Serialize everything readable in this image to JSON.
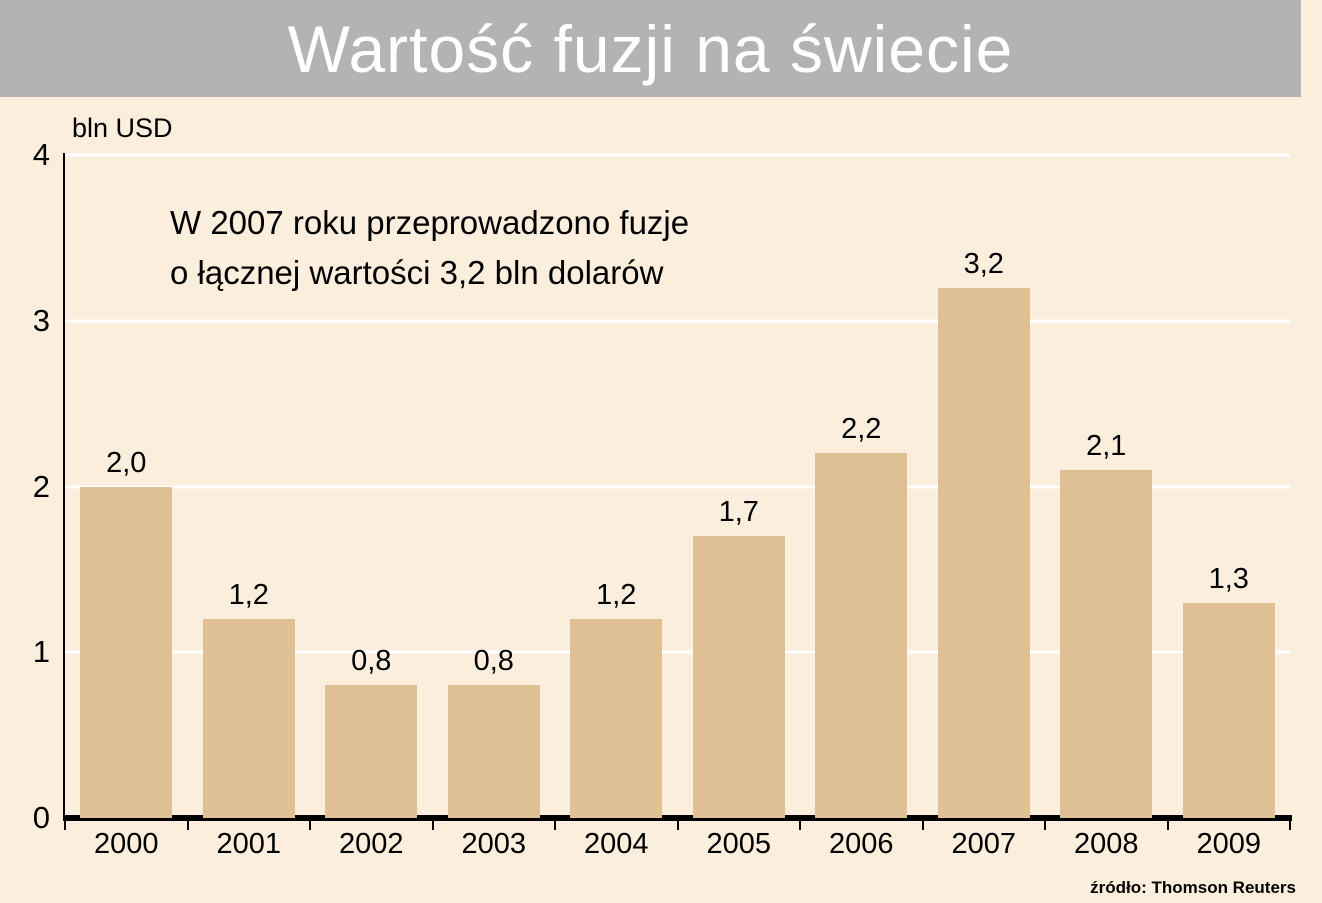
{
  "header": {
    "title": "Wartość fuzji na świecie"
  },
  "chart_data": {
    "type": "bar",
    "title": "Wartość fuzji na świecie",
    "ylabel": "bln USD",
    "xlabel": "",
    "categories": [
      "2000",
      "2001",
      "2002",
      "2003",
      "2004",
      "2005",
      "2006",
      "2007",
      "2008",
      "2009"
    ],
    "values": [
      2.0,
      1.2,
      0.8,
      0.8,
      1.2,
      1.7,
      2.2,
      3.2,
      2.1,
      1.3
    ],
    "value_labels": [
      "2,0",
      "1,2",
      "0,8",
      "0,8",
      "1,2",
      "1,7",
      "2,2",
      "3,2",
      "2,1",
      "1,3"
    ],
    "ylim": [
      0,
      4
    ],
    "yticks": [
      0,
      1,
      2,
      3,
      4
    ],
    "grid": true,
    "legend": "none",
    "annotation_lines": [
      "W 2007 roku przeprowadzono fuzje",
      "o łącznej wartości 3,2 bln dolarów"
    ],
    "source": "źródło: Thomson Reuters",
    "colors": {
      "bar": "#dfc094",
      "background": "#fceedd",
      "header": "#b3b3b3",
      "grid": "#ffffff",
      "title_text": "#ffffff",
      "text": "#000000"
    }
  }
}
